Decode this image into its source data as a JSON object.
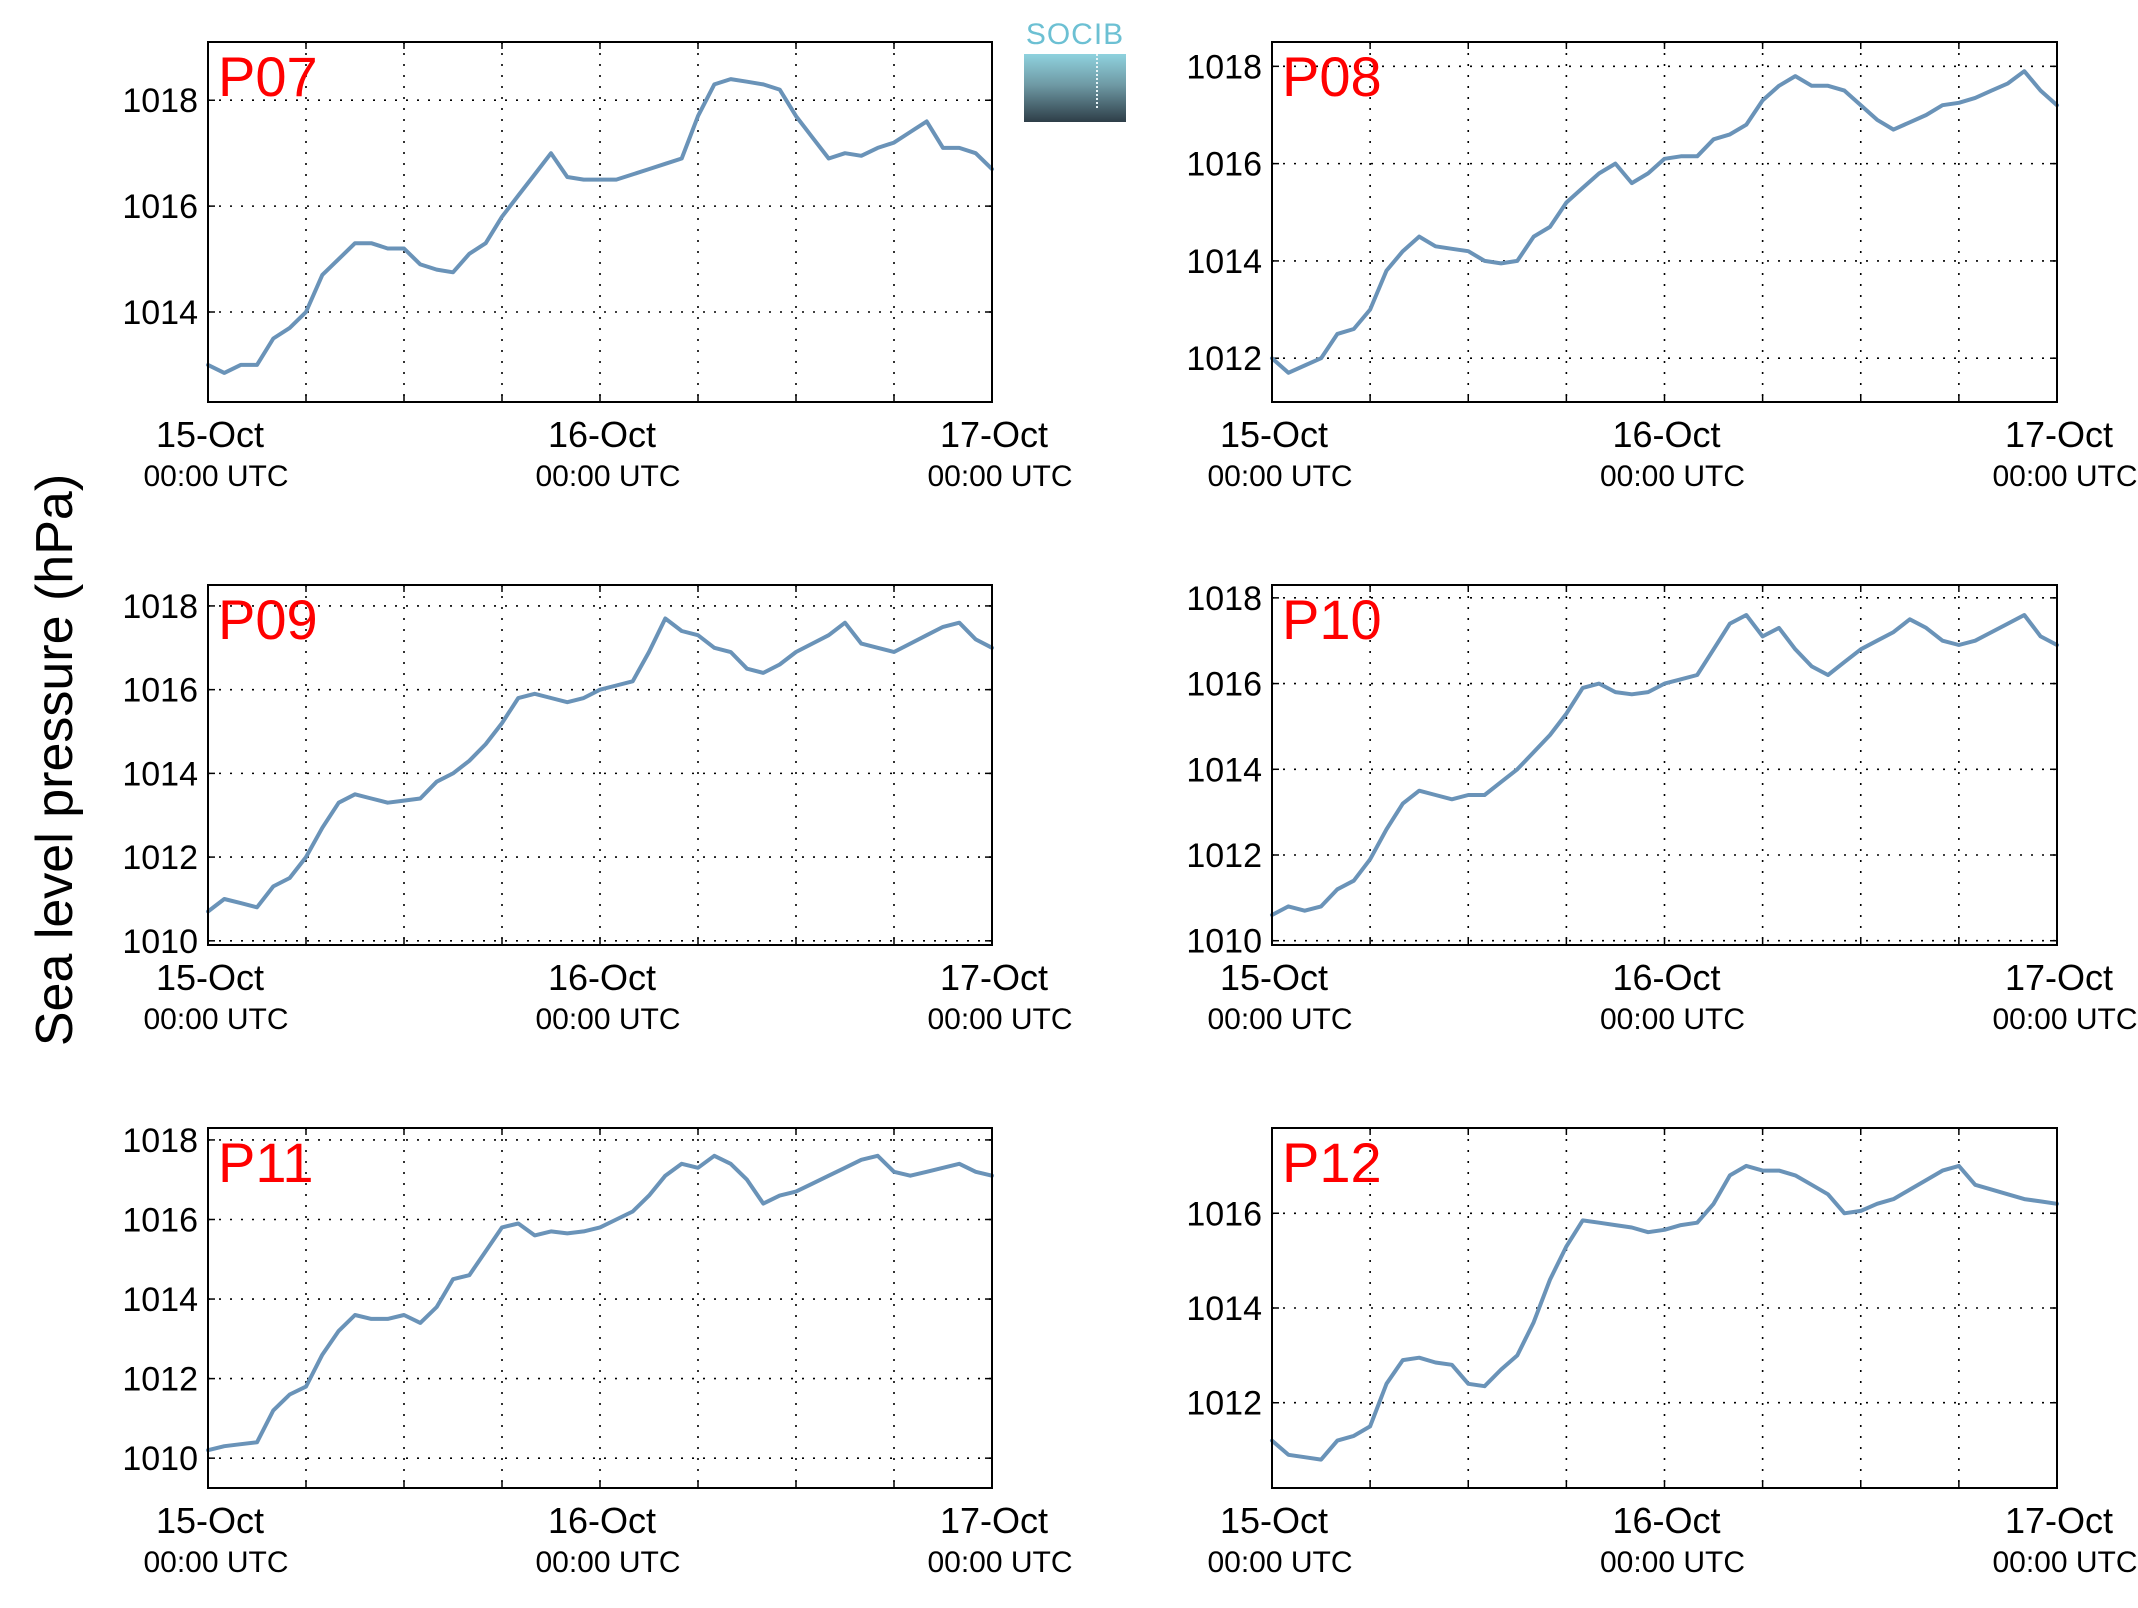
{
  "figure": {
    "ylabel": "Sea level pressure (hPa)",
    "logo_text": "SOCIB",
    "line_color": "#6a93b8",
    "title_color": "#ff0000"
  },
  "chart_data": [
    {
      "type": "line",
      "title": "P07",
      "x_ticks": [
        {
          "day": "15-Oct",
          "time": "00:00 UTC"
        },
        {
          "day": "16-Oct",
          "time": "00:00 UTC"
        },
        {
          "day": "17-Oct",
          "time": "00:00 UTC"
        }
      ],
      "x_unit": "hours since 15-Oct 00:00 UTC",
      "xlim": [
        0,
        48
      ],
      "ylim": [
        1012.3,
        1019.1
      ],
      "yticks": [
        1014,
        1016,
        1018
      ],
      "grid": true,
      "x": [
        0,
        1,
        2,
        3,
        4,
        5,
        6,
        7,
        8,
        9,
        10,
        11,
        12,
        13,
        14,
        15,
        16,
        17,
        18,
        19,
        20,
        21,
        22,
        23,
        24,
        25,
        26,
        27,
        28,
        29,
        30,
        31,
        32,
        33,
        34,
        35,
        36,
        37,
        38,
        39,
        40,
        41,
        42,
        43,
        44,
        45,
        46,
        47,
        48
      ],
      "values": [
        1013.0,
        1012.85,
        1013.0,
        1013.0,
        1013.5,
        1013.7,
        1014.0,
        1014.7,
        1015.0,
        1015.3,
        1015.3,
        1015.2,
        1015.2,
        1014.9,
        1014.8,
        1014.75,
        1015.1,
        1015.3,
        1015.8,
        1016.2,
        1016.6,
        1017.0,
        1016.55,
        1016.5,
        1016.5,
        1016.5,
        1016.6,
        1016.7,
        1016.8,
        1016.9,
        1017.7,
        1018.3,
        1018.4,
        1018.35,
        1018.3,
        1018.2,
        1017.7,
        1017.3,
        1016.9,
        1017.0,
        1016.95,
        1017.1,
        1017.2,
        1017.4,
        1017.6,
        1017.1,
        1017.1,
        1017.0,
        1016.7
      ]
    },
    {
      "type": "line",
      "title": "P08",
      "x_ticks": [
        {
          "day": "15-Oct",
          "time": "00:00 UTC"
        },
        {
          "day": "16-Oct",
          "time": "00:00 UTC"
        },
        {
          "day": "17-Oct",
          "time": "00:00 UTC"
        }
      ],
      "x_unit": "hours since 15-Oct 00:00 UTC",
      "xlim": [
        0,
        48
      ],
      "ylim": [
        1011.1,
        1018.5
      ],
      "yticks": [
        1012,
        1014,
        1016,
        1018
      ],
      "grid": true,
      "x": [
        0,
        1,
        2,
        3,
        4,
        5,
        6,
        7,
        8,
        9,
        10,
        11,
        12,
        13,
        14,
        15,
        16,
        17,
        18,
        19,
        20,
        21,
        22,
        23,
        24,
        25,
        26,
        27,
        28,
        29,
        30,
        31,
        32,
        33,
        34,
        35,
        36,
        37,
        38,
        39,
        40,
        41,
        42,
        43,
        44,
        45,
        46,
        47,
        48
      ],
      "values": [
        1012.0,
        1011.7,
        1011.85,
        1012.0,
        1012.5,
        1012.6,
        1013.0,
        1013.8,
        1014.2,
        1014.5,
        1014.3,
        1014.25,
        1014.2,
        1014.0,
        1013.95,
        1014.0,
        1014.5,
        1014.7,
        1015.2,
        1015.5,
        1015.8,
        1016.0,
        1015.6,
        1015.8,
        1016.1,
        1016.15,
        1016.15,
        1016.5,
        1016.6,
        1016.8,
        1017.3,
        1017.6,
        1017.8,
        1017.6,
        1017.6,
        1017.5,
        1017.2,
        1016.9,
        1016.7,
        1016.85,
        1017.0,
        1017.2,
        1017.25,
        1017.35,
        1017.5,
        1017.65,
        1017.9,
        1017.5,
        1017.2
      ]
    },
    {
      "type": "line",
      "title": "P09",
      "x_ticks": [
        {
          "day": "15-Oct",
          "time": "00:00 UTC"
        },
        {
          "day": "16-Oct",
          "time": "00:00 UTC"
        },
        {
          "day": "17-Oct",
          "time": "00:00 UTC"
        }
      ],
      "x_unit": "hours since 15-Oct 00:00 UTC",
      "xlim": [
        0,
        48
      ],
      "ylim": [
        1009.9,
        1018.5
      ],
      "yticks": [
        1010,
        1012,
        1014,
        1016,
        1018
      ],
      "grid": true,
      "x": [
        0,
        1,
        2,
        3,
        4,
        5,
        6,
        7,
        8,
        9,
        10,
        11,
        12,
        13,
        14,
        15,
        16,
        17,
        18,
        19,
        20,
        21,
        22,
        23,
        24,
        25,
        26,
        27,
        28,
        29,
        30,
        31,
        32,
        33,
        34,
        35,
        36,
        37,
        38,
        39,
        40,
        41,
        42,
        43,
        44,
        45,
        46,
        47,
        48
      ],
      "values": [
        1010.7,
        1011.0,
        1010.9,
        1010.8,
        1011.3,
        1011.5,
        1012.0,
        1012.7,
        1013.3,
        1013.5,
        1013.4,
        1013.3,
        1013.35,
        1013.4,
        1013.8,
        1014.0,
        1014.3,
        1014.7,
        1015.2,
        1015.8,
        1015.9,
        1015.8,
        1015.7,
        1015.8,
        1016.0,
        1016.1,
        1016.2,
        1016.9,
        1017.7,
        1017.4,
        1017.3,
        1017.0,
        1016.9,
        1016.5,
        1016.4,
        1016.6,
        1016.9,
        1017.1,
        1017.3,
        1017.6,
        1017.1,
        1017.0,
        1016.9,
        1017.1,
        1017.3,
        1017.5,
        1017.6,
        1017.2,
        1017.0
      ]
    },
    {
      "type": "line",
      "title": "P10",
      "x_ticks": [
        {
          "day": "15-Oct",
          "time": "00:00 UTC"
        },
        {
          "day": "16-Oct",
          "time": "00:00 UTC"
        },
        {
          "day": "17-Oct",
          "time": "00:00 UTC"
        }
      ],
      "x_unit": "hours since 15-Oct 00:00 UTC",
      "xlim": [
        0,
        48
      ],
      "ylim": [
        1009.9,
        1018.3
      ],
      "yticks": [
        1010,
        1012,
        1014,
        1016,
        1018
      ],
      "grid": true,
      "x": [
        0,
        1,
        2,
        3,
        4,
        5,
        6,
        7,
        8,
        9,
        10,
        11,
        12,
        13,
        14,
        15,
        16,
        17,
        18,
        19,
        20,
        21,
        22,
        23,
        24,
        25,
        26,
        27,
        28,
        29,
        30,
        31,
        32,
        33,
        34,
        35,
        36,
        37,
        38,
        39,
        40,
        41,
        42,
        43,
        44,
        45,
        46,
        47,
        48
      ],
      "values": [
        1010.6,
        1010.8,
        1010.7,
        1010.8,
        1011.2,
        1011.4,
        1011.9,
        1012.6,
        1013.2,
        1013.5,
        1013.4,
        1013.3,
        1013.4,
        1013.4,
        1013.7,
        1014.0,
        1014.4,
        1014.8,
        1015.3,
        1015.9,
        1016.0,
        1015.8,
        1015.75,
        1015.8,
        1016.0,
        1016.1,
        1016.2,
        1016.8,
        1017.4,
        1017.6,
        1017.1,
        1017.3,
        1016.8,
        1016.4,
        1016.2,
        1016.5,
        1016.8,
        1017.0,
        1017.2,
        1017.5,
        1017.3,
        1017.0,
        1016.9,
        1017.0,
        1017.2,
        1017.4,
        1017.6,
        1017.1,
        1016.9
      ]
    },
    {
      "type": "line",
      "title": "P11",
      "x_ticks": [
        {
          "day": "15-Oct",
          "time": "00:00 UTC"
        },
        {
          "day": "16-Oct",
          "time": "00:00 UTC"
        },
        {
          "day": "17-Oct",
          "time": "00:00 UTC"
        }
      ],
      "x_unit": "hours since 15-Oct 00:00 UTC",
      "xlim": [
        0,
        48
      ],
      "ylim": [
        1009.25,
        1018.3
      ],
      "yticks": [
        1010,
        1012,
        1014,
        1016,
        1018
      ],
      "grid": true,
      "x": [
        0,
        1,
        2,
        3,
        4,
        5,
        6,
        7,
        8,
        9,
        10,
        11,
        12,
        13,
        14,
        15,
        16,
        17,
        18,
        19,
        20,
        21,
        22,
        23,
        24,
        25,
        26,
        27,
        28,
        29,
        30,
        31,
        32,
        33,
        34,
        35,
        36,
        37,
        38,
        39,
        40,
        41,
        42,
        43,
        44,
        45,
        46,
        47,
        48
      ],
      "values": [
        1010.2,
        1010.3,
        1010.35,
        1010.4,
        1011.2,
        1011.6,
        1011.8,
        1012.6,
        1013.2,
        1013.6,
        1013.5,
        1013.5,
        1013.6,
        1013.4,
        1013.8,
        1014.5,
        1014.6,
        1015.2,
        1015.8,
        1015.9,
        1015.6,
        1015.7,
        1015.65,
        1015.7,
        1015.8,
        1016.0,
        1016.2,
        1016.6,
        1017.1,
        1017.4,
        1017.3,
        1017.6,
        1017.4,
        1017.0,
        1016.4,
        1016.6,
        1016.7,
        1016.9,
        1017.1,
        1017.3,
        1017.5,
        1017.6,
        1017.2,
        1017.1,
        1017.2,
        1017.3,
        1017.4,
        1017.2,
        1017.1
      ]
    },
    {
      "type": "line",
      "title": "P12",
      "x_ticks": [
        {
          "day": "15-Oct",
          "time": "00:00 UTC"
        },
        {
          "day": "16-Oct",
          "time": "00:00 UTC"
        },
        {
          "day": "17-Oct",
          "time": "00:00 UTC"
        }
      ],
      "x_unit": "hours since 15-Oct 00:00 UTC",
      "xlim": [
        0,
        48
      ],
      "ylim": [
        1010.2,
        1017.8
      ],
      "yticks": [
        1012,
        1014,
        1016
      ],
      "grid": true,
      "x": [
        0,
        1,
        2,
        3,
        4,
        5,
        6,
        7,
        8,
        9,
        10,
        11,
        12,
        13,
        14,
        15,
        16,
        17,
        18,
        19,
        20,
        21,
        22,
        23,
        24,
        25,
        26,
        27,
        28,
        29,
        30,
        31,
        32,
        33,
        34,
        35,
        36,
        37,
        38,
        39,
        40,
        41,
        42,
        43,
        44,
        45,
        46,
        47,
        48
      ],
      "values": [
        1011.2,
        1010.9,
        1010.85,
        1010.8,
        1011.2,
        1011.3,
        1011.5,
        1012.4,
        1012.9,
        1012.95,
        1012.85,
        1012.8,
        1012.4,
        1012.35,
        1012.7,
        1013.0,
        1013.7,
        1014.6,
        1015.3,
        1015.85,
        1015.8,
        1015.75,
        1015.7,
        1015.6,
        1015.65,
        1015.75,
        1015.8,
        1016.2,
        1016.8,
        1017.0,
        1016.9,
        1016.9,
        1016.8,
        1016.6,
        1016.4,
        1016.0,
        1016.05,
        1016.2,
        1016.3,
        1016.5,
        1016.7,
        1016.9,
        1017.0,
        1016.6,
        1016.5,
        1016.4,
        1016.3,
        1016.25,
        1016.2
      ]
    }
  ]
}
